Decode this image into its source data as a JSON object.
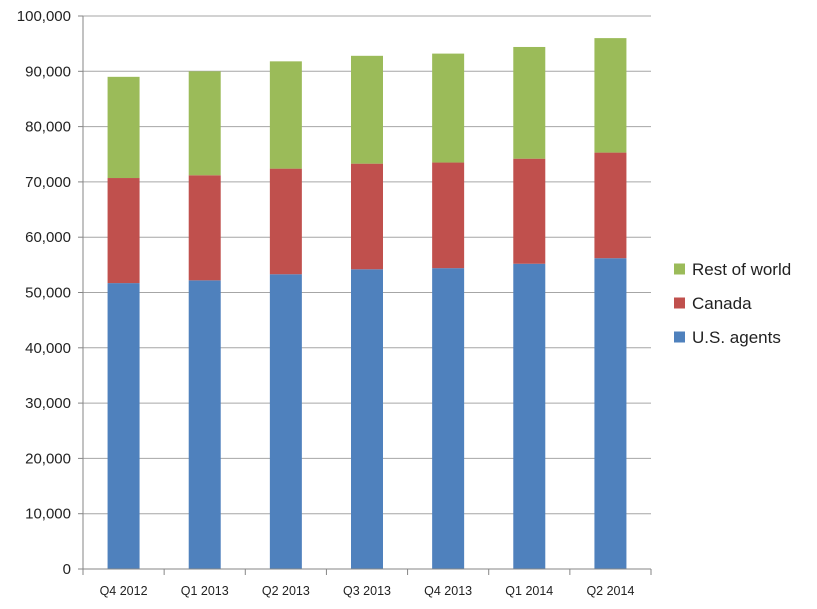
{
  "chart_data": {
    "type": "bar",
    "stacked": true,
    "categories": [
      "Q4 2012",
      "Q1 2013",
      "Q2 2013",
      "Q3 2013",
      "Q4 2013",
      "Q1 2014",
      "Q2 2014"
    ],
    "series": [
      {
        "name": "U.S. agents",
        "color": "#4f81bd",
        "values": [
          51700,
          52200,
          53300,
          54200,
          54400,
          55200,
          56200
        ]
      },
      {
        "name": "Canada",
        "color": "#c0504d",
        "values": [
          19000,
          19000,
          19100,
          19100,
          19100,
          19000,
          19100
        ]
      },
      {
        "name": "Rest of world",
        "color": "#9bbb59",
        "values": [
          18300,
          18800,
          19400,
          19500,
          19700,
          20200,
          20700
        ]
      }
    ],
    "ylim": [
      0,
      100000
    ],
    "yticks": [
      "0",
      "10,000",
      "20,000",
      "30,000",
      "40,000",
      "50,000",
      "60,000",
      "70,000",
      "80,000",
      "90,000",
      "100,000"
    ],
    "ytick_values": [
      0,
      10000,
      20000,
      30000,
      40000,
      50000,
      60000,
      70000,
      80000,
      90000,
      100000
    ],
    "grid": true,
    "legend_position": "right",
    "legend_order": [
      "Rest of world",
      "Canada",
      "U.S. agents"
    ]
  },
  "colors": {
    "grid": "#a6a6a6",
    "axis": "#868686"
  }
}
